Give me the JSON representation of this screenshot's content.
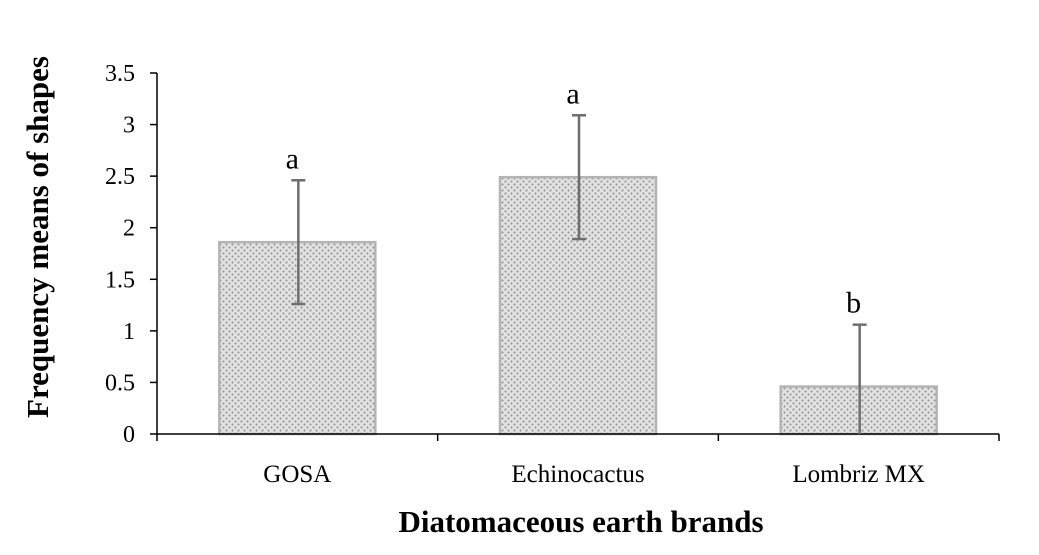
{
  "chart_data": {
    "type": "bar",
    "categories": [
      "GOSA",
      "Echinocactus",
      "Lombriz MX"
    ],
    "values": [
      1.86,
      2.49,
      0.46
    ],
    "error": [
      0.6,
      0.6,
      0.6
    ],
    "significance_labels": [
      "a",
      "a",
      "b"
    ],
    "xlabel": "Diatomaceous earth brands",
    "ylabel": "Frequency means of shapes",
    "ylim": [
      0,
      3.5
    ],
    "yticks": [
      "0",
      "0.5",
      "1",
      "1.5",
      "2",
      "2.5",
      "3",
      "3.5"
    ],
    "grid": false,
    "legend": "none",
    "colors": {
      "bar_fill_base": "#e3e3e3",
      "bar_pattern_dot": "#9a9a9a",
      "bar_border": "#b4b4b4",
      "error_bar": "#6e6e6e",
      "axis": "#000000"
    }
  }
}
